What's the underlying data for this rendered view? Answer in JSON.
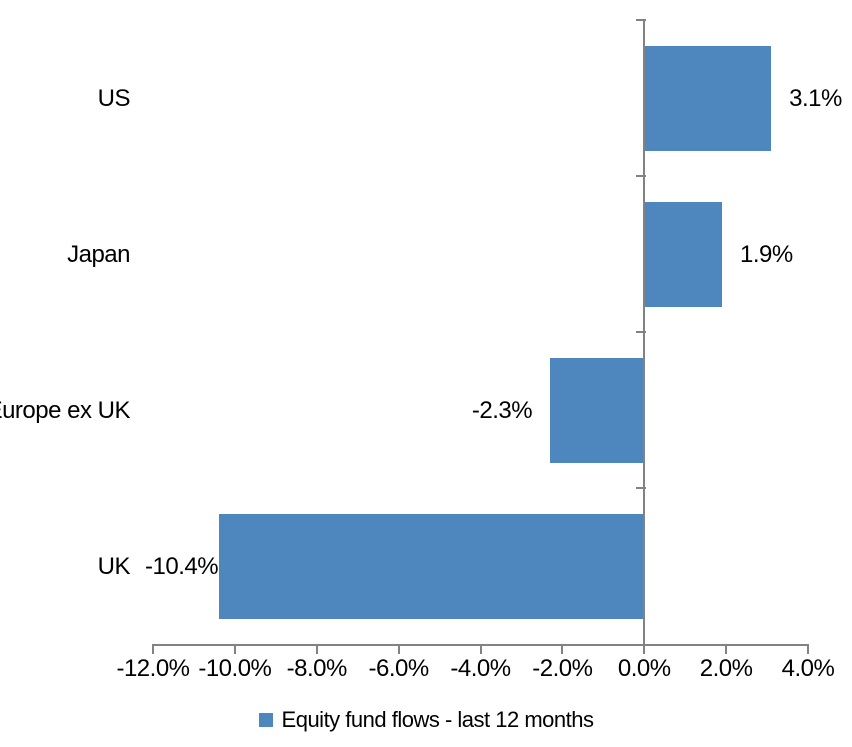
{
  "chart_data": {
    "type": "bar",
    "orientation": "horizontal",
    "title": "",
    "xlabel": "",
    "ylabel": "",
    "categories": [
      "US",
      "Japan",
      "Europe ex UK",
      "UK"
    ],
    "series": [
      {
        "name": "Equity fund flows - last 12 months",
        "values": [
          3.1,
          1.9,
          -2.3,
          -10.4
        ],
        "value_labels": [
          "3.1%",
          "1.9%",
          "-2.3%",
          "-10.4%"
        ]
      }
    ],
    "xlim": [
      -12,
      4
    ],
    "x_ticks": [
      -12,
      -10,
      -8,
      -6,
      -4,
      -2,
      0,
      2,
      4
    ],
    "x_tick_labels": [
      "-12.0%",
      "-10.0%",
      "-8.0%",
      "-6.0%",
      "-4.0%",
      "-2.0%",
      "0.0%",
      "2.0%",
      "4.0%"
    ],
    "grid": false,
    "legend_position": "bottom",
    "legend": "Equity fund flows - last 12 months",
    "colors": {
      "bar": "#4E87BD",
      "axis": "#828282",
      "text": "#000000",
      "background": "#FFFFFF"
    }
  }
}
